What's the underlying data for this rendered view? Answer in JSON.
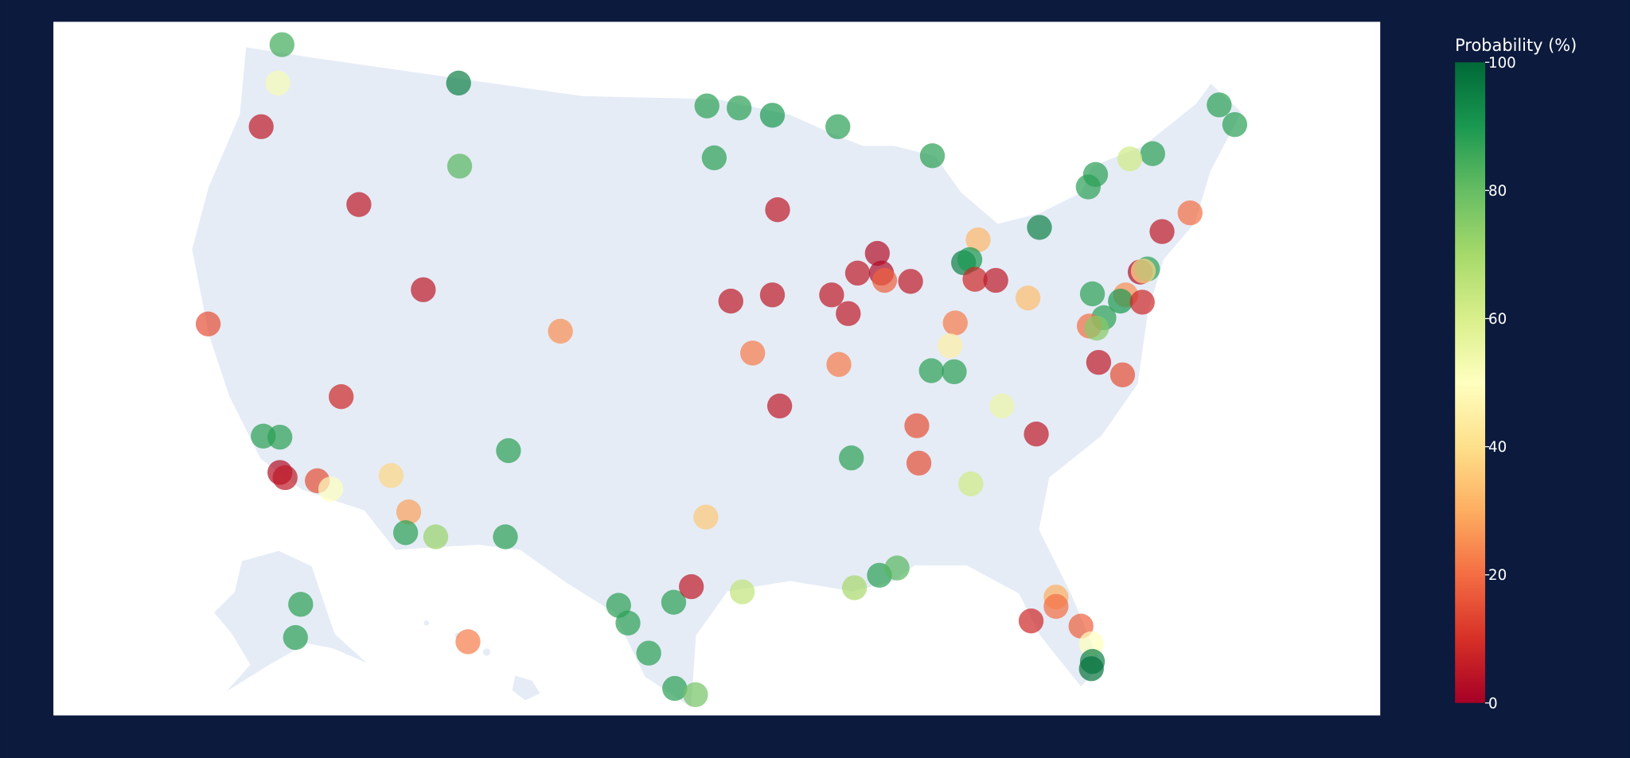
{
  "chart_data": {
    "type": "scatter_geo",
    "colorbar_title": "Probability (%)",
    "clim": [
      0,
      100
    ],
    "colorbar_ticks": [
      0,
      20,
      40,
      60,
      80,
      100
    ],
    "colorscale": [
      "#a50026",
      "#d73027",
      "#f46d43",
      "#fdae61",
      "#fee08b",
      "#ffffbf",
      "#d9ef8b",
      "#a6d96a",
      "#66bd63",
      "#1a9850",
      "#006837"
    ],
    "opacity": 0.7,
    "values": [
      85,
      52,
      95,
      5,
      82,
      5,
      88,
      88,
      90,
      88,
      88,
      88,
      88,
      88,
      88,
      62,
      88,
      88,
      5,
      95,
      20,
      5,
      32,
      3,
      95,
      90,
      5,
      2,
      18,
      5,
      8,
      5,
      5,
      5,
      5,
      5,
      5,
      33,
      88,
      25,
      3,
      88,
      38,
      90,
      8,
      88,
      20,
      75,
      15,
      25,
      22,
      45,
      22,
      22,
      88,
      88,
      5,
      15,
      8,
      5,
      55,
      88,
      88,
      3,
      5,
      15,
      50,
      38,
      28,
      88,
      15,
      5,
      88,
      15,
      62,
      35,
      88,
      72,
      88,
      88,
      88,
      88,
      5,
      65,
      70,
      88,
      82,
      88,
      88,
      78,
      88,
      88,
      22,
      8,
      30,
      20,
      18,
      50,
      95,
      98
    ]
  }
}
